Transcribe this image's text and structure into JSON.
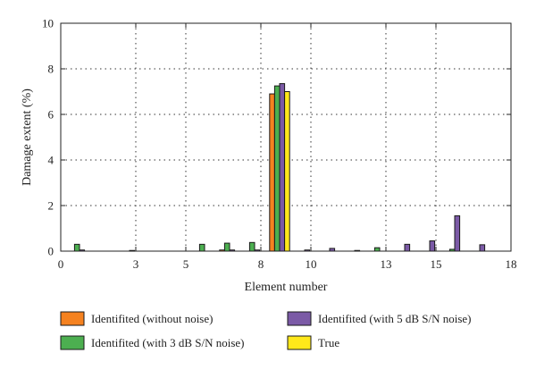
{
  "chart_data": {
    "type": "bar",
    "title": "",
    "xlabel": "Element number",
    "ylabel": "Damage extent (%)",
    "xlim": [
      0,
      18
    ],
    "ylim": [
      0,
      10
    ],
    "xticks": [
      0,
      3,
      5,
      8,
      10,
      13,
      15,
      18
    ],
    "yticks": [
      0,
      2,
      4,
      6,
      8,
      10
    ],
    "grid": true,
    "legend_position": "bottom",
    "categories": [
      1,
      2,
      3,
      4,
      5,
      6,
      7,
      8,
      9,
      10,
      11,
      12,
      13,
      14,
      15,
      16,
      17
    ],
    "series": [
      {
        "name": "Identifited (without noise)",
        "color": "#f58220",
        "values": [
          0,
          0,
          0,
          0,
          0,
          0,
          0.05,
          0,
          6.9,
          0,
          0,
          0,
          0,
          0,
          0,
          0,
          0
        ]
      },
      {
        "name": "Identifited (with 3 dB S/N noise)",
        "color": "#4caf50",
        "values": [
          0.3,
          0,
          0,
          0,
          0,
          0.3,
          0.35,
          0.38,
          7.25,
          0,
          0,
          0,
          0.15,
          0,
          0,
          0.08,
          0
        ]
      },
      {
        "name": "Identifited (with 5 dB S/N noise)",
        "color": "#7b5aa6",
        "values": [
          0.05,
          0,
          0.03,
          0,
          0,
          0,
          0.05,
          0.05,
          7.35,
          0.05,
          0.12,
          0.03,
          0,
          0.3,
          0.45,
          1.55,
          0.28
        ]
      },
      {
        "name": "True",
        "color": "#ffe81a",
        "values": [
          0,
          0,
          0,
          0,
          0,
          0,
          0,
          0,
          7.0,
          0,
          0,
          0,
          0,
          0,
          0,
          0,
          0
        ]
      }
    ]
  }
}
